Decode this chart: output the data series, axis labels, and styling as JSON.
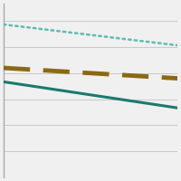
{
  "title": "",
  "background_color": "#f0f0f0",
  "xlim": [
    0,
    1
  ],
  "ylim": [
    0,
    1
  ],
  "lines": [
    {
      "x_start": 0.0,
      "y_start": 0.88,
      "x_end": 1.0,
      "y_end": 0.76,
      "color": "#5abcb4",
      "style": "dotted",
      "linewidth": 1.8
    },
    {
      "x_start": 0.0,
      "y_start": 0.63,
      "x_end": 1.0,
      "y_end": 0.57,
      "color": "#8b6914",
      "style": "dashed",
      "linewidth": 3.5
    },
    {
      "x_start": 0.0,
      "y_start": 0.55,
      "x_end": 1.0,
      "y_end": 0.4,
      "color": "#1a7a6e",
      "style": "solid",
      "linewidth": 2.2
    }
  ],
  "hlines": [
    0.15,
    0.3,
    0.45,
    0.6,
    0.75,
    0.9
  ],
  "hline_color": "#c8c8c8",
  "hline_linewidth": 0.7,
  "spine_color": "#aaaaaa",
  "spine_linewidth": 1.0
}
